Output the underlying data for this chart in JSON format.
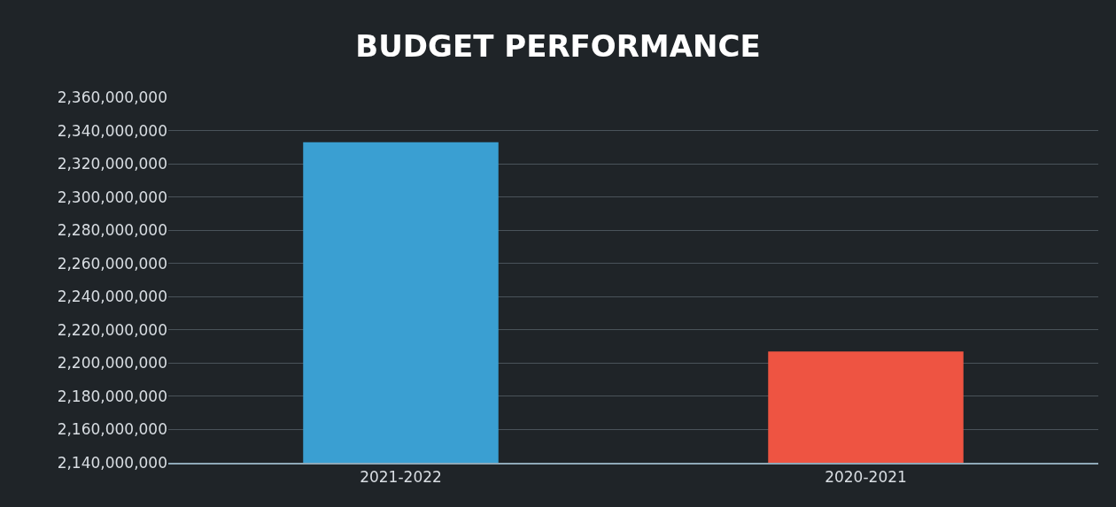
{
  "chart_data": {
    "type": "bar",
    "title": "BUDGET PERFORMANCE",
    "categories": [
      "2021-2022",
      "2020-2021"
    ],
    "values": [
      2333000000,
      2207000000
    ],
    "colors": [
      "#3a9fd2",
      "#ee5442"
    ],
    "ylim": [
      2140000000,
      2360000000
    ],
    "yticks": [
      {
        "value": 2140000000,
        "label": "2,140,000,000"
      },
      {
        "value": 2160000000,
        "label": "2,160,000,000"
      },
      {
        "value": 2180000000,
        "label": "2,180,000,000"
      },
      {
        "value": 2200000000,
        "label": "2,200,000,000"
      },
      {
        "value": 2220000000,
        "label": "2,220,000,000"
      },
      {
        "value": 2240000000,
        "label": "2,240,000,000"
      },
      {
        "value": 2260000000,
        "label": "2,260,000,000"
      },
      {
        "value": 2280000000,
        "label": "2,280,000,000"
      },
      {
        "value": 2300000000,
        "label": "2,300,000,000"
      },
      {
        "value": 2320000000,
        "label": "2,320,000,000"
      },
      {
        "value": 2340000000,
        "label": "2,340,000,000"
      },
      {
        "value": 2360000000,
        "label": "2,360,000,000"
      }
    ],
    "grid": "y"
  }
}
